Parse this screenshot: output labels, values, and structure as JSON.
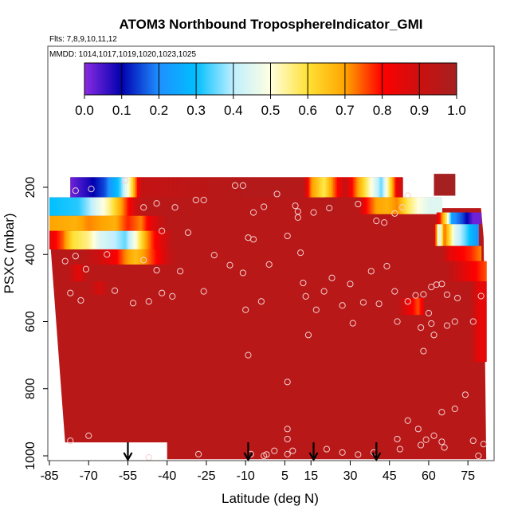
{
  "chart_data": {
    "type": "heatmap",
    "title": "ATOM3 Northbound TroposphereIndicator_GMI",
    "flights_label": "Flts: 7,8,9,10,11,12",
    "dates_label": "MMDD: 1014,1017,1019,1020,1023,1025",
    "xlabel": "Latitude (deg N)",
    "ylabel": "PSXC (mbar)",
    "xlim": [
      -85,
      85
    ],
    "ylim": [
      1000,
      60
    ],
    "x_ticks": [
      -85,
      -70,
      -55,
      -40,
      -25,
      -10,
      5,
      15,
      30,
      45,
      60,
      75
    ],
    "y_ticks": [
      200,
      400,
      600,
      800,
      1000
    ],
    "colorbar": {
      "range": [
        0,
        1
      ],
      "ticks": [
        "0.0",
        "0.1",
        "0.2",
        "0.3",
        "0.4",
        "0.5",
        "0.6",
        "0.7",
        "0.8",
        "0.9",
        "1.0"
      ],
      "colors": [
        "#8a2be2",
        "#0000b0",
        "#1e90ff",
        "#00bfff",
        "#bfefff",
        "#ffffe0",
        "#ffe135",
        "#ffa500",
        "#ff0000",
        "#cc1010",
        "#a52020"
      ]
    },
    "background_value": 0.95,
    "bands": [
      {
        "lat_min": -77,
        "lat_max": 50,
        "p_top": 170,
        "p_bot": 230,
        "stops": [
          [
            -77,
            0.02
          ],
          [
            -70,
            0.08
          ],
          [
            -64,
            0.15
          ],
          [
            -58,
            0.33
          ],
          [
            -54,
            0.55
          ],
          [
            -50,
            0.92
          ],
          [
            -10,
            0.96
          ],
          [
            12,
            0.96
          ],
          [
            15,
            0.72
          ],
          [
            20,
            0.58
          ],
          [
            24,
            0.75
          ],
          [
            28,
            0.92
          ],
          [
            32,
            0.74
          ],
          [
            38,
            0.5
          ],
          [
            42,
            0.35
          ],
          [
            45,
            0.58
          ],
          [
            48,
            0.85
          ],
          [
            50,
            0.9
          ]
        ]
      },
      {
        "lat_min": 62,
        "lat_max": 70,
        "p_top": 160,
        "p_bot": 225,
        "stops": [
          [
            62,
            1.0
          ],
          [
            70,
            1.0
          ]
        ]
      },
      {
        "lat_min": -85,
        "lat_max": -48,
        "p_top": 230,
        "p_bot": 285,
        "stops": [
          [
            -85,
            0.3
          ],
          [
            -74,
            0.32
          ],
          [
            -70,
            0.38
          ],
          [
            -62,
            0.55
          ],
          [
            -56,
            0.75
          ],
          [
            -52,
            0.9
          ],
          [
            -48,
            0.95
          ]
        ]
      },
      {
        "lat_min": 20,
        "lat_max": 65,
        "p_top": 230,
        "p_bot": 280,
        "stops": [
          [
            20,
            0.96
          ],
          [
            33,
            0.95
          ],
          [
            36,
            0.8
          ],
          [
            40,
            0.7
          ],
          [
            44,
            0.68
          ],
          [
            48,
            0.72
          ],
          [
            52,
            0.58
          ],
          [
            56,
            0.5
          ],
          [
            60,
            0.45
          ],
          [
            65,
            0.45
          ]
        ]
      },
      {
        "lat_min": -85,
        "lat_max": -40,
        "p_top": 285,
        "p_bot": 330,
        "stops": [
          [
            -85,
            0.7
          ],
          [
            -75,
            0.68
          ],
          [
            -70,
            0.72
          ],
          [
            -65,
            0.7
          ],
          [
            -60,
            0.68
          ],
          [
            -55,
            0.78
          ],
          [
            -50,
            0.72
          ],
          [
            -46,
            0.85
          ],
          [
            -42,
            0.92
          ],
          [
            -40,
            0.95
          ]
        ]
      },
      {
        "lat_min": 63,
        "lat_max": 80,
        "p_top": 275,
        "p_bot": 310,
        "stops": [
          [
            63,
            0.9
          ],
          [
            67,
            0.55
          ],
          [
            69,
            0.22
          ],
          [
            73,
            0.15
          ],
          [
            77,
            0.02
          ],
          [
            80,
            0.02
          ]
        ]
      },
      {
        "lat_min": -85,
        "lat_max": -38,
        "p_top": 330,
        "p_bot": 385,
        "stops": [
          [
            -85,
            0.85
          ],
          [
            -80,
            0.75
          ],
          [
            -76,
            0.6
          ],
          [
            -70,
            0.55
          ],
          [
            -66,
            0.45
          ],
          [
            -60,
            0.4
          ],
          [
            -56,
            0.35
          ],
          [
            -52,
            0.5
          ],
          [
            -48,
            0.7
          ],
          [
            -44,
            0.82
          ],
          [
            -40,
            0.9
          ],
          [
            -38,
            0.95
          ]
        ]
      },
      {
        "lat_min": 62,
        "lat_max": 79,
        "p_top": 310,
        "p_bot": 375,
        "stops": [
          [
            62,
            0.95
          ],
          [
            64,
            0.4
          ],
          [
            66,
            0.75
          ],
          [
            70,
            0.45
          ],
          [
            74,
            0.35
          ],
          [
            79,
            0.2
          ]
        ]
      },
      {
        "lat_min": -72,
        "lat_max": -37,
        "p_top": 385,
        "p_bot": 430,
        "stops": [
          [
            -72,
            0.95
          ],
          [
            -66,
            0.9
          ],
          [
            -60,
            0.82
          ],
          [
            -56,
            0.72
          ],
          [
            -52,
            0.66
          ],
          [
            -48,
            0.72
          ],
          [
            -44,
            0.8
          ],
          [
            -40,
            0.9
          ],
          [
            -37,
            0.95
          ]
        ]
      },
      {
        "lat_min": 65,
        "lat_max": 80,
        "p_top": 375,
        "p_bot": 420,
        "stops": [
          [
            65,
            0.95
          ],
          [
            68,
            0.85
          ],
          [
            73,
            0.8
          ],
          [
            76,
            0.78
          ],
          [
            80,
            0.72
          ]
        ]
      },
      {
        "lat_min": -78,
        "lat_max": -70,
        "p_top": 430,
        "p_bot": 480,
        "stops": [
          [
            -78,
            0.95
          ],
          [
            -74,
            0.85
          ],
          [
            -70,
            0.95
          ]
        ]
      },
      {
        "lat_min": 67,
        "lat_max": 82,
        "p_top": 420,
        "p_bot": 480,
        "stops": [
          [
            67,
            0.95
          ],
          [
            74,
            0.85
          ],
          [
            78,
            0.8
          ],
          [
            82,
            0.75
          ]
        ]
      },
      {
        "lat_min": -70,
        "lat_max": -62,
        "p_top": 480,
        "p_bot": 520,
        "stops": [
          [
            -70,
            0.95
          ],
          [
            -66,
            0.88
          ],
          [
            -62,
            0.95
          ]
        ]
      },
      {
        "lat_min": 48,
        "lat_max": 58,
        "p_top": 530,
        "p_bot": 580,
        "stops": [
          [
            48,
            0.95
          ],
          [
            52,
            0.85
          ],
          [
            56,
            0.75
          ],
          [
            58,
            0.85
          ]
        ]
      },
      {
        "lat_min": 76,
        "lat_max": 82,
        "p_top": 480,
        "p_bot": 720,
        "stops": [
          [
            76,
            0.95
          ],
          [
            79,
            0.85
          ],
          [
            82,
            0.85
          ]
        ]
      }
    ],
    "arrows_lat": [
      -55,
      -9,
      16,
      40
    ],
    "points": [
      [
        -56,
        180
      ],
      [
        -75,
        210
      ],
      [
        -69,
        205
      ],
      [
        -49,
        260
      ],
      [
        -44,
        248
      ],
      [
        -37,
        260
      ],
      [
        -29,
        238
      ],
      [
        -26,
        238
      ],
      [
        -14,
        195
      ],
      [
        -11,
        195
      ],
      [
        -7,
        275
      ],
      [
        -3,
        258
      ],
      [
        2,
        220
      ],
      [
        9,
        255
      ],
      [
        10,
        272
      ],
      [
        10,
        290
      ],
      [
        16,
        275
      ],
      [
        22,
        262
      ],
      [
        33,
        250
      ],
      [
        40,
        300
      ],
      [
        43,
        305
      ],
      [
        47,
        278
      ],
      [
        50,
        260
      ],
      [
        52,
        225
      ],
      [
        6,
        345
      ],
      [
        -7,
        355
      ],
      [
        -9,
        350
      ],
      [
        -42,
        330
      ],
      [
        -32,
        335
      ],
      [
        -22,
        402
      ],
      [
        -16,
        432
      ],
      [
        -35,
        450
      ],
      [
        -44,
        447
      ],
      [
        -49,
        417
      ],
      [
        -75,
        405
      ],
      [
        -63,
        400
      ],
      [
        -71,
        444
      ],
      [
        -79,
        420
      ],
      [
        -11,
        455
      ],
      [
        -1,
        430
      ],
      [
        -73,
        537
      ],
      [
        -53,
        545
      ],
      [
        -47,
        540
      ],
      [
        -38,
        525
      ],
      [
        -26,
        510
      ],
      [
        -4,
        540
      ],
      [
        -10,
        565
      ],
      [
        -42,
        515
      ],
      [
        -60,
        508
      ],
      [
        -77,
        515
      ],
      [
        11,
        395
      ],
      [
        12,
        485
      ],
      [
        13,
        525
      ],
      [
        20,
        510
      ],
      [
        17,
        565
      ],
      [
        23,
        470
      ],
      [
        30,
        488
      ],
      [
        38,
        450
      ],
      [
        44,
        435
      ],
      [
        35,
        543
      ],
      [
        47,
        510
      ],
      [
        55,
        522
      ],
      [
        52,
        540
      ],
      [
        58,
        519
      ],
      [
        61,
        497
      ],
      [
        63,
        490
      ],
      [
        65,
        488
      ],
      [
        67,
        520
      ],
      [
        71,
        530
      ],
      [
        80,
        524
      ],
      [
        48,
        600
      ],
      [
        60,
        575
      ],
      [
        57,
        618
      ],
      [
        61,
        606
      ],
      [
        62,
        640
      ],
      [
        67,
        612
      ],
      [
        70,
        600
      ],
      [
        77,
        600
      ],
      [
        27,
        552
      ],
      [
        41,
        547
      ],
      [
        31,
        605
      ],
      [
        58,
        688
      ],
      [
        74,
        818
      ],
      [
        70,
        860
      ],
      [
        65,
        870
      ],
      [
        52,
        895
      ],
      [
        56,
        920
      ],
      [
        62,
        940
      ],
      [
        65,
        958
      ],
      [
        48,
        950
      ],
      [
        57,
        968
      ],
      [
        77,
        955
      ],
      [
        81,
        965
      ],
      [
        66,
        975
      ],
      [
        59,
        952
      ],
      [
        49,
        980
      ],
      [
        39,
        990
      ],
      [
        21,
        980
      ],
      [
        27,
        990
      ],
      [
        33,
        996
      ],
      [
        -9,
        700
      ],
      [
        6,
        780
      ],
      [
        14,
        640
      ],
      [
        6,
        920
      ],
      [
        6,
        950
      ],
      [
        8,
        985
      ],
      [
        6,
        995
      ],
      [
        1,
        985
      ],
      [
        -3,
        1000
      ],
      [
        -2,
        996
      ],
      [
        -8,
        995
      ],
      [
        -28,
        995
      ],
      [
        -47,
        1005
      ],
      [
        -70,
        940
      ],
      [
        -77,
        955
      ],
      [
        79,
        1000
      ]
    ]
  }
}
